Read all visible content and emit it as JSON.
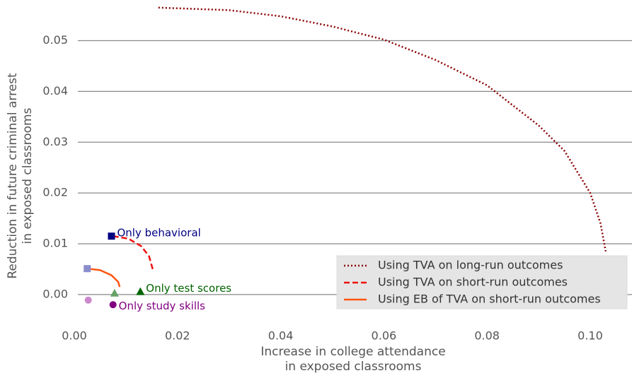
{
  "chart_data": {
    "type": "scatter",
    "xlabel": [
      "Increase in college attendance",
      "in exposed classrooms"
    ],
    "ylabel": [
      "Reduction in future criminal arrest",
      "in exposed classrooms"
    ],
    "xlim": [
      0,
      0.1081
    ],
    "ylim": [
      -0.006,
      0.058
    ],
    "xticks": [
      {
        "value": 0,
        "label": "0.00"
      },
      {
        "value": 0.02,
        "label": "0.02"
      },
      {
        "value": 0.04,
        "label": "0.04"
      },
      {
        "value": 0.06,
        "label": "0.06"
      },
      {
        "value": 0.08,
        "label": "0.08"
      },
      {
        "value": 0.1,
        "label": "0.10"
      }
    ],
    "yticks": [
      {
        "value": 0,
        "label": "0.00"
      },
      {
        "value": 0.01,
        "label": "0.01"
      },
      {
        "value": 0.02,
        "label": "0.02"
      },
      {
        "value": 0.03,
        "label": "0.03"
      },
      {
        "value": 0.04,
        "label": "0.04"
      },
      {
        "value": 0.05,
        "label": "0.05"
      }
    ],
    "grid": "y",
    "legend": "lower right",
    "series": [
      {
        "name": "Using TVA on long-run outcomes",
        "color": "#8b0000",
        "dash": "dotted",
        "x": [
          0.0163,
          0.03,
          0.04,
          0.05,
          0.06,
          0.07,
          0.08,
          0.09,
          0.095,
          0.1,
          0.102,
          0.103
        ],
        "y": [
          0.0565,
          0.056,
          0.0548,
          0.0528,
          0.0502,
          0.0462,
          0.0412,
          0.0333,
          0.0283,
          0.02,
          0.014,
          0.0085
        ]
      },
      {
        "name": "Using TVA on short-run outcomes",
        "color": "#ee1111",
        "dash": "dashed",
        "x": [
          0.0075,
          0.0105,
          0.013,
          0.0145,
          0.0152
        ],
        "y": [
          0.0115,
          0.011,
          0.0095,
          0.0075,
          0.005
        ]
      },
      {
        "name": "Using EB of TVA on short-run outcomes",
        "color": "#ff5511",
        "dash": "solid",
        "x": [
          0.0025,
          0.005,
          0.0072,
          0.0085,
          0.0088
        ],
        "y": [
          0.0051,
          0.0048,
          0.0038,
          0.0025,
          0.0015
        ]
      }
    ],
    "markers": [
      {
        "label": "Only behavioral",
        "marker": "square",
        "color": "#000080",
        "x": 0.0072,
        "y": 0.0115,
        "faded": {
          "x": 0.0025,
          "y": 0.0051,
          "color": "#8a8ccc"
        }
      },
      {
        "label": "Only test scores",
        "marker": "triangle",
        "color": "#006400",
        "x": 0.0128,
        "y": 0.0006,
        "faded": {
          "x": 0.0078,
          "y": 0.0003,
          "color": "#66a366"
        }
      },
      {
        "label": "Only study skills",
        "marker": "circle",
        "color": "#800080",
        "x": 0.0075,
        "y": -0.002,
        "faded": {
          "x": 0.0027,
          "y": -0.0011,
          "color": "#cc88cc"
        }
      }
    ]
  }
}
